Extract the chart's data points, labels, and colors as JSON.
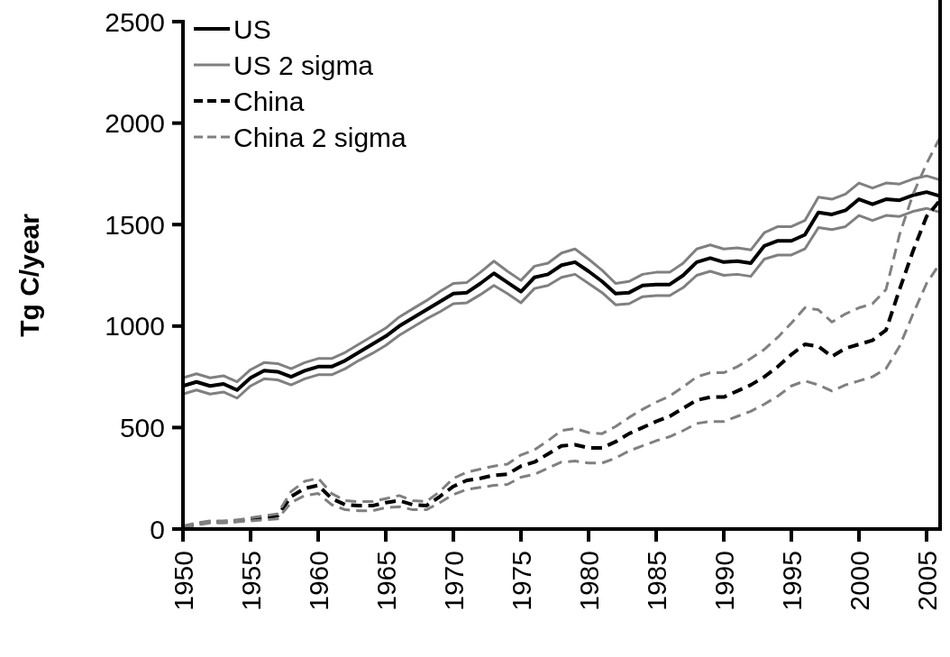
{
  "chart_data": {
    "type": "line",
    "ylabel": "Tg C/year",
    "xlim": [
      1950,
      2006
    ],
    "xticks": [
      1950,
      1955,
      1960,
      1965,
      1970,
      1975,
      1980,
      1985,
      1990,
      1995,
      2000,
      2005
    ],
    "ylim": [
      0,
      2500
    ],
    "yticks": [
      0,
      500,
      1000,
      1500,
      2000,
      2500
    ],
    "legend": "top left",
    "x": [
      1950,
      1951,
      1952,
      1953,
      1954,
      1955,
      1956,
      1957,
      1958,
      1959,
      1960,
      1961,
      1962,
      1963,
      1964,
      1965,
      1966,
      1967,
      1968,
      1969,
      1970,
      1971,
      1972,
      1973,
      1974,
      1975,
      1976,
      1977,
      1978,
      1979,
      1980,
      1981,
      1982,
      1983,
      1984,
      1985,
      1986,
      1987,
      1988,
      1989,
      1990,
      1991,
      1992,
      1993,
      1994,
      1995,
      1996,
      1997,
      1998,
      1999,
      2000,
      2001,
      2002,
      2003,
      2004,
      2005,
      2006
    ],
    "series": [
      {
        "name": "US",
        "color": "#000000",
        "line_style": "solid",
        "values": [
          705,
          725,
          705,
          715,
          685,
          745,
          780,
          775,
          750,
          780,
          800,
          800,
          830,
          870,
          910,
          950,
          1000,
          1040,
          1080,
          1120,
          1160,
          1165,
          1210,
          1260,
          1215,
          1170,
          1240,
          1255,
          1300,
          1315,
          1270,
          1220,
          1160,
          1165,
          1200,
          1205,
          1205,
          1250,
          1315,
          1335,
          1315,
          1320,
          1310,
          1395,
          1420,
          1420,
          1450,
          1560,
          1550,
          1570,
          1625,
          1600,
          1625,
          1620,
          1645,
          1660,
          1640
        ]
      },
      {
        "name": "US 2 sigma",
        "color": "#808080",
        "line_style": "solid",
        "values": [
          745,
          765,
          745,
          755,
          725,
          785,
          820,
          815,
          790,
          820,
          840,
          840,
          870,
          910,
          950,
          990,
          1045,
          1085,
          1125,
          1170,
          1210,
          1215,
          1265,
          1320,
          1270,
          1225,
          1295,
          1310,
          1360,
          1380,
          1330,
          1275,
          1210,
          1220,
          1255,
          1265,
          1265,
          1310,
          1380,
          1400,
          1380,
          1385,
          1375,
          1460,
          1490,
          1490,
          1520,
          1635,
          1625,
          1650,
          1705,
          1680,
          1705,
          1700,
          1725,
          1740,
          1720
        ]
      },
      {
        "color": "#808080",
        "line_style": "solid",
        "values": [
          665,
          685,
          665,
          675,
          645,
          705,
          740,
          735,
          710,
          740,
          760,
          760,
          790,
          830,
          865,
          905,
          955,
          995,
          1035,
          1070,
          1110,
          1115,
          1155,
          1200,
          1160,
          1115,
          1185,
          1200,
          1240,
          1255,
          1210,
          1165,
          1105,
          1110,
          1145,
          1150,
          1150,
          1190,
          1250,
          1270,
          1250,
          1255,
          1245,
          1330,
          1350,
          1350,
          1380,
          1485,
          1475,
          1490,
          1545,
          1520,
          1545,
          1540,
          1565,
          1580,
          1560
        ]
      },
      {
        "name": "China",
        "color": "#000000",
        "line_style": "dashed",
        "values": [
          10,
          25,
          35,
          35,
          40,
          50,
          55,
          65,
          160,
          200,
          215,
          150,
          120,
          115,
          115,
          130,
          140,
          120,
          115,
          160,
          210,
          240,
          250,
          265,
          270,
          310,
          330,
          370,
          410,
          415,
          400,
          400,
          430,
          470,
          500,
          530,
          555,
          595,
          635,
          650,
          650,
          680,
          710,
          750,
          800,
          860,
          910,
          900,
          850,
          890,
          910,
          930,
          980,
          1180,
          1370,
          1540,
          1620
        ]
      },
      {
        "name": "China 2 sigma",
        "color": "#808080",
        "line_style": "dashed",
        "values": [
          15,
          30,
          40,
          40,
          45,
          55,
          65,
          75,
          185,
          235,
          250,
          175,
          140,
          135,
          135,
          150,
          165,
          140,
          135,
          185,
          250,
          280,
          295,
          310,
          320,
          365,
          390,
          435,
          485,
          495,
          475,
          470,
          505,
          550,
          590,
          625,
          655,
          700,
          750,
          770,
          770,
          800,
          840,
          885,
          945,
          1015,
          1090,
          1080,
          1020,
          1060,
          1090,
          1110,
          1180,
          1450,
          1650,
          1800,
          1930
        ]
      },
      {
        "color": "#808080",
        "line_style": "dashed",
        "values": [
          5,
          20,
          30,
          30,
          35,
          40,
          45,
          50,
          130,
          165,
          175,
          120,
          95,
          90,
          90,
          105,
          110,
          95,
          95,
          130,
          170,
          195,
          205,
          215,
          220,
          255,
          270,
          300,
          330,
          335,
          325,
          325,
          350,
          385,
          410,
          435,
          455,
          485,
          520,
          530,
          530,
          555,
          580,
          615,
          655,
          705,
          730,
          710,
          680,
          710,
          730,
          750,
          790,
          900,
          1060,
          1210,
          1310
        ]
      }
    ]
  }
}
